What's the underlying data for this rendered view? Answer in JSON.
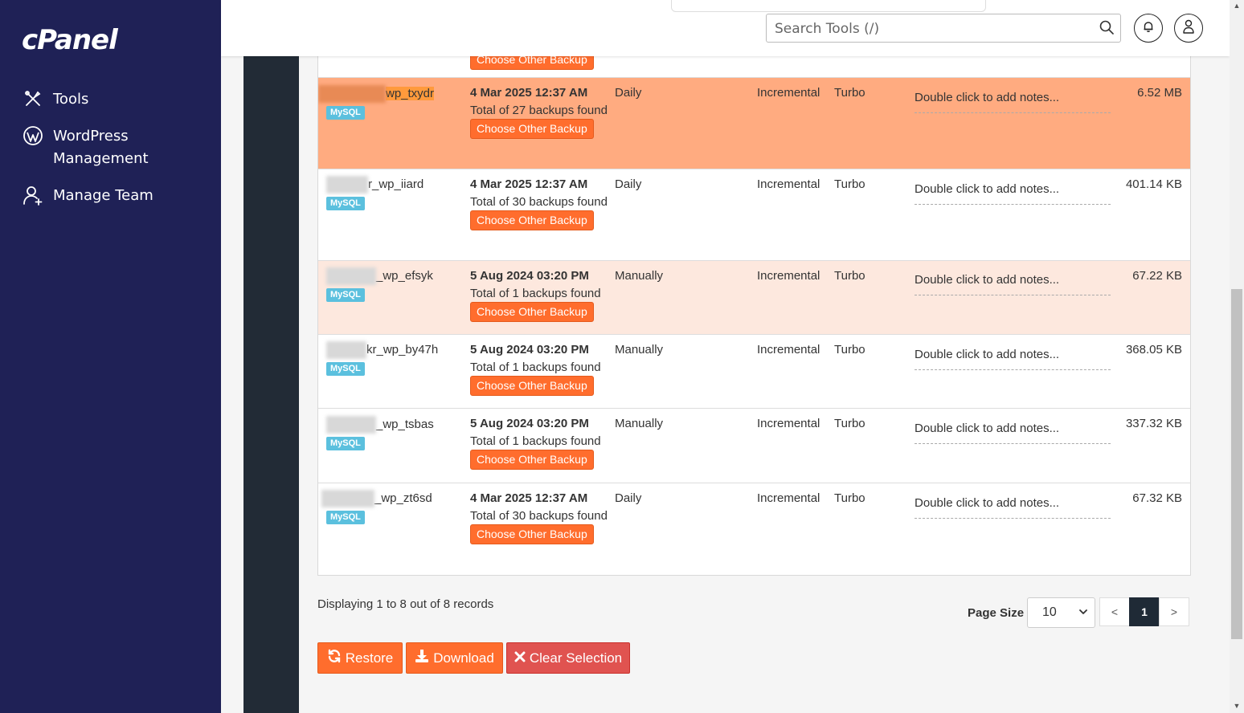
{
  "sidebar": {
    "logo": "cPanel",
    "items": [
      {
        "label": "Tools",
        "icon": "tools-icon"
      },
      {
        "label": "WordPress Management",
        "icon": "wordpress-icon"
      },
      {
        "label": "Manage Team",
        "icon": "manage-team-icon"
      }
    ]
  },
  "header": {
    "search_placeholder": "Search Tools (/)"
  },
  "table": {
    "partial_button": "Choose Other Backup",
    "rows": [
      {
        "name": "wp_txydr",
        "db": "MySQL",
        "date": "4 Mar 2025 12:37 AM",
        "count": "Total of 27 backups found",
        "action": "Choose Other Backup",
        "frequency": "Daily",
        "type": "Incremental",
        "engine": "Turbo",
        "notes": "Double click to add notes...",
        "size": "6.52 MB"
      },
      {
        "name": "r_wp_iiard",
        "db": "MySQL",
        "date": "4 Mar 2025 12:37 AM",
        "count": "Total of 30 backups found",
        "action": "Choose Other Backup",
        "frequency": "Daily",
        "type": "Incremental",
        "engine": "Turbo",
        "notes": "Double click to add notes...",
        "size": "401.14 KB"
      },
      {
        "name": "_wp_efsyk",
        "db": "MySQL",
        "date": "5 Aug 2024 03:20 PM",
        "count": "Total of 1 backups found",
        "action": "Choose Other Backup",
        "frequency": "Manually",
        "type": "Incremental",
        "engine": "Turbo",
        "notes": "Double click to add notes...",
        "size": "67.22 KB"
      },
      {
        "name": "kr_wp_by47h",
        "db": "MySQL",
        "date": "5 Aug 2024 03:20 PM",
        "count": "Total of 1 backups found",
        "action": "Choose Other Backup",
        "frequency": "Manually",
        "type": "Incremental",
        "engine": "Turbo",
        "notes": "Double click to add notes...",
        "size": "368.05 KB"
      },
      {
        "name": "_wp_tsbas",
        "db": "MySQL",
        "date": "5 Aug 2024 03:20 PM",
        "count": "Total of 1 backups found",
        "action": "Choose Other Backup",
        "frequency": "Manually",
        "type": "Incremental",
        "engine": "Turbo",
        "notes": "Double click to add notes...",
        "size": "337.32 KB"
      },
      {
        "name": "_wp_zt6sd",
        "db": "MySQL",
        "date": "4 Mar 2025 12:37 AM",
        "count": "Total of 30 backups found",
        "action": "Choose Other Backup",
        "frequency": "Daily",
        "type": "Incremental",
        "engine": "Turbo",
        "notes": "Double click to add notes...",
        "size": "67.32 KB"
      }
    ]
  },
  "footer": {
    "records": "Displaying 1 to 8 out of 8 records",
    "page_size_label": "Page Size",
    "page_size_value": "10",
    "prev": "<",
    "current_page": "1",
    "next": ">",
    "restore": "Restore",
    "download": "Download",
    "clear": "Clear Selection"
  },
  "colors": {
    "sidebar_bg": "#1f2156",
    "selected_row": "#ffab80",
    "alt_row": "#fde8de",
    "accent_orange": "#ff6d2d",
    "danger_red": "#e05350",
    "badge_blue": "#5bc0de"
  }
}
